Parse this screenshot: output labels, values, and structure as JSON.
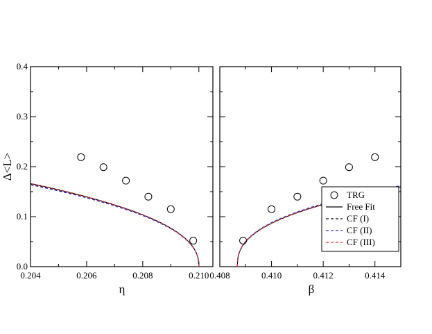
{
  "chart_data": [
    {
      "type": "line",
      "panel": "left",
      "xlabel": "η",
      "ylabel": "Δ<L>",
      "xlim": [
        0.204,
        0.2105
      ],
      "ylim": [
        0.0,
        0.4
      ],
      "xticks": [
        "0.204",
        "0.206",
        "0.208",
        "0.210"
      ],
      "yticks": [
        "0.0",
        "0.1",
        "0.2",
        "0.3",
        "0.4"
      ],
      "grid": false,
      "points": {
        "name": "TRG",
        "x": [
          0.2058,
          0.2066,
          0.2074,
          0.2082,
          0.209,
          0.2098
        ],
        "y": [
          0.219,
          0.199,
          0.172,
          0.14,
          0.115,
          0.052
        ]
      },
      "curve_model": {
        "critical_x": 0.21,
        "amplitude": 1.5,
        "exponent": 0.43,
        "direction": "below"
      },
      "series": [
        {
          "name": "Free Fit",
          "color": "#000000",
          "dash": "solid",
          "amplitude_scale": 1.0
        },
        {
          "name": "CF (I)",
          "color": "#000000",
          "dash": "dashed",
          "amplitude_scale": 0.99
        },
        {
          "name": "CF (II)",
          "color": "#2b2bc8",
          "dash": "dashed",
          "amplitude_scale": 0.985
        },
        {
          "name": "CF (III)",
          "color": "#e03030",
          "dash": "dashed",
          "amplitude_scale": 1.0
        }
      ]
    },
    {
      "type": "line",
      "panel": "right",
      "xlabel": "β",
      "xlim": [
        0.408,
        0.415
      ],
      "ylim": [
        0.0,
        0.4
      ],
      "xticks": [
        "0.408",
        "0.410",
        "0.412",
        "0.414"
      ],
      "grid": false,
      "legend_position": "bottom-right",
      "points": {
        "name": "TRG",
        "x": [
          0.4089,
          0.41,
          0.411,
          0.412,
          0.413,
          0.414
        ],
        "y": [
          0.052,
          0.115,
          0.14,
          0.172,
          0.199,
          0.219
        ]
      },
      "curve_model": {
        "critical_x": 0.40868,
        "amplitude": 1.15,
        "exponent": 0.39,
        "direction": "above"
      },
      "series": [
        {
          "name": "Free Fit",
          "color": "#000000",
          "dash": "solid",
          "amplitude_scale": 1.0
        },
        {
          "name": "CF (I)",
          "color": "#000000",
          "dash": "dashed",
          "amplitude_scale": 1.01
        },
        {
          "name": "CF (II)",
          "color": "#2b2bc8",
          "dash": "dashed",
          "amplitude_scale": 1.015
        },
        {
          "name": "CF (III)",
          "color": "#e03030",
          "dash": "dashed",
          "amplitude_scale": 1.0
        }
      ]
    }
  ]
}
